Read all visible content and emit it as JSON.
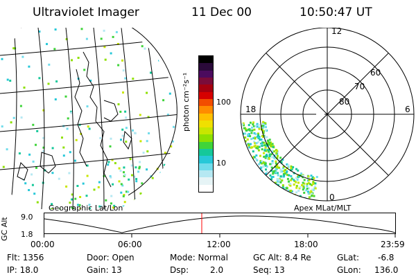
{
  "header": {
    "instrument": "Ultraviolet Imager",
    "date": "11 Dec 00",
    "time": "10:50:47 UT"
  },
  "panels": {
    "left_label": "Geographic Lat/Lon",
    "right_label": "Apex MLat/MLT"
  },
  "colorbar": {
    "unit_label": "photon cm⁻²s⁻¹",
    "ticks": [
      "100",
      "10"
    ],
    "colors": [
      "#000000",
      "#2a0a3a",
      "#4b0b5e",
      "#7a0c3a",
      "#a5000f",
      "#d60000",
      "#f24d00",
      "#ff8c00",
      "#ffc000",
      "#f0e000",
      "#c8e600",
      "#8ee000",
      "#3fd43a",
      "#15c89a",
      "#27c8d8",
      "#70dceb",
      "#b5e8f2",
      "#e6f4f6",
      "#ffffff"
    ]
  },
  "polar": {
    "mlt_labels": {
      "top": "12",
      "left": "18",
      "right": "6",
      "bottom": "0"
    },
    "lat_labels": [
      "60",
      "70",
      "80"
    ]
  },
  "altitude_plot": {
    "y_axis_label": "GC Alt",
    "y_ticks": [
      "9.0",
      "1.8"
    ],
    "x_ticks": [
      "00:00",
      "06:00",
      "12:00",
      "18:00",
      "23:59"
    ],
    "current_time_color": "#ff0000"
  },
  "info": {
    "flt": "Flt: 1356",
    "ip": "IP: 18.0",
    "door": "Door: Open",
    "gain": "Gain: 13",
    "mode": "Mode: Normal",
    "dsp_label": "Dsp:",
    "dsp_value": "2.0",
    "gcalt": "GC Alt: 8.4 Re",
    "seq": "Seq: 13",
    "glat_label": "GLat:",
    "glat_value": "-6.8",
    "glon_label": "GLon:",
    "glon_value": "136.0"
  }
}
